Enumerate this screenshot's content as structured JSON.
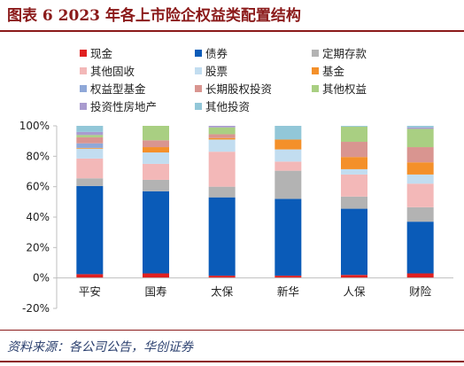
{
  "title": "图表 6   2023 年各上市险企权益类配置结构",
  "source": "资料来源：各公司公告，华创证券",
  "colors": {
    "title": "#8b1a1a",
    "axis": "#bfbfbf"
  },
  "chart_data": {
    "type": "bar",
    "stacked": true,
    "categories": [
      "平安",
      "国寿",
      "太保",
      "新华",
      "人保",
      "财险"
    ],
    "y_ticks": [
      "-20%",
      "0%",
      "20%",
      "40%",
      "60%",
      "80%",
      "100%"
    ],
    "ylim": [
      -20,
      100
    ],
    "legend_position": "top",
    "series": [
      {
        "name": "现金",
        "color": "#e02020",
        "values": [
          2.5,
          3,
          1.5,
          1.5,
          2,
          3
        ]
      },
      {
        "name": "债券",
        "color": "#0a5bb8",
        "values": [
          58,
          54,
          51.5,
          50.5,
          43.5,
          34
        ]
      },
      {
        "name": "定期存款",
        "color": "#b3b3b3",
        "values": [
          5,
          7.5,
          7,
          18.5,
          8,
          9.5
        ]
      },
      {
        "name": "其他固收",
        "color": "#f3b8b8",
        "values": [
          13,
          10.5,
          23,
          6,
          14.5,
          15.5
        ]
      },
      {
        "name": "股票",
        "color": "#c2ddf0",
        "values": [
          6.5,
          7.5,
          8,
          8,
          3.5,
          6
        ]
      },
      {
        "name": "基金",
        "color": "#f4902a",
        "values": [
          0.5,
          3.5,
          1,
          6.5,
          8,
          8
        ]
      },
      {
        "name": "权益型基金",
        "color": "#8fa8d8",
        "values": [
          3,
          0,
          0,
          0,
          0,
          0
        ]
      },
      {
        "name": "长期股权投资",
        "color": "#d99590",
        "values": [
          4,
          4.5,
          2.5,
          0,
          10,
          10
        ]
      },
      {
        "name": "其他权益",
        "color": "#a9cf82",
        "values": [
          1.5,
          9.5,
          4.5,
          0,
          10,
          12
        ]
      },
      {
        "name": "投资性房地产",
        "color": "#a99bcf",
        "values": [
          2,
          0,
          1,
          0,
          0,
          1
        ]
      },
      {
        "name": "其他投资",
        "color": "#92c7d8",
        "values": [
          4,
          0,
          0,
          9,
          0.5,
          1
        ]
      }
    ]
  }
}
